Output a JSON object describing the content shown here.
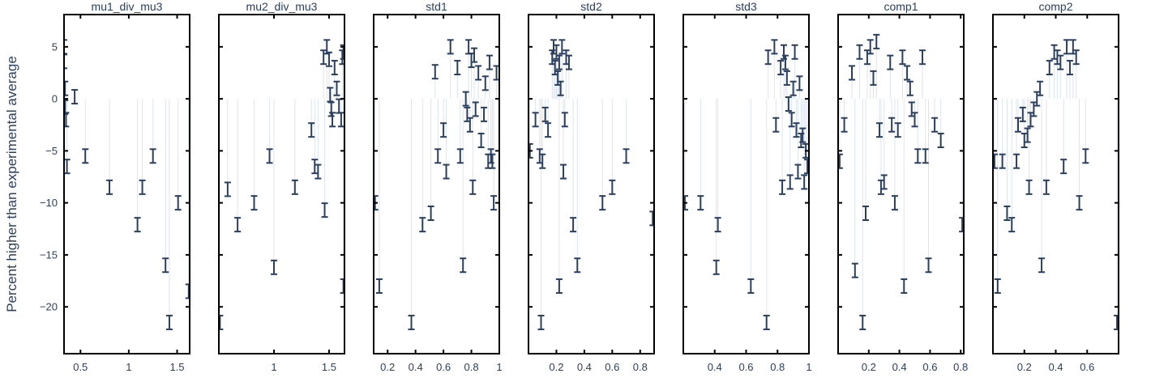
{
  "chart_data": {
    "type": "scatter",
    "ylabel": "Percent higher than experimental average",
    "ylim": [
      -24.5,
      8.1
    ],
    "yticks": [
      5,
      0,
      -5,
      -10,
      -15,
      -20
    ],
    "yticklabels": [
      "5",
      "0",
      "−5",
      "−10",
      "−15",
      "−20"
    ],
    "color": "#2a3f5f",
    "stem_color": "#dce4ee",
    "panels": [
      {
        "title": "mu1_div_mu3",
        "xlim": [
          0.33,
          1.63
        ],
        "xticks": [
          0.5,
          1,
          1.5
        ],
        "xticklabels": [
          "0.5",
          "1",
          "1.5"
        ],
        "points": [
          {
            "x": 0.33,
            "y": 5.0
          },
          {
            "x": 0.33,
            "y": 3.6
          },
          {
            "x": 0.34,
            "y": 1.0
          },
          {
            "x": 0.34,
            "y": -0.8
          },
          {
            "x": 0.35,
            "y": -2.0
          },
          {
            "x": 0.36,
            "y": -6.5
          },
          {
            "x": 0.44,
            "y": 0.2
          },
          {
            "x": 0.55,
            "y": -5.5
          },
          {
            "x": 0.8,
            "y": -8.5
          },
          {
            "x": 1.09,
            "y": -12.1
          },
          {
            "x": 1.14,
            "y": -8.5
          },
          {
            "x": 1.25,
            "y": -5.5
          },
          {
            "x": 1.38,
            "y": -16.0
          },
          {
            "x": 1.42,
            "y": -21.5
          },
          {
            "x": 1.51,
            "y": -10.0
          },
          {
            "x": 1.62,
            "y": -18.5
          }
        ]
      },
      {
        "title": "mu2_div_mu3",
        "xlim": [
          0.5,
          1.64
        ],
        "xticks": [
          1,
          1.5
        ],
        "xticklabels": [
          "1",
          "1.5"
        ],
        "points": [
          {
            "x": 0.51,
            "y": -21.5
          },
          {
            "x": 0.58,
            "y": -8.7
          },
          {
            "x": 0.67,
            "y": -12.1
          },
          {
            "x": 0.82,
            "y": -10.0
          },
          {
            "x": 0.96,
            "y": -5.5
          },
          {
            "x": 1.0,
            "y": -16.2
          },
          {
            "x": 1.19,
            "y": -8.5
          },
          {
            "x": 1.34,
            "y": -3.0
          },
          {
            "x": 1.37,
            "y": -6.5
          },
          {
            "x": 1.4,
            "y": -7.0
          },
          {
            "x": 1.45,
            "y": 4.0
          },
          {
            "x": 1.46,
            "y": -10.7
          },
          {
            "x": 1.48,
            "y": 5.0
          },
          {
            "x": 1.5,
            "y": 3.8
          },
          {
            "x": 1.51,
            "y": 0.4
          },
          {
            "x": 1.52,
            "y": -1.0
          },
          {
            "x": 1.53,
            "y": -2.0
          },
          {
            "x": 1.55,
            "y": 3.0
          },
          {
            "x": 1.57,
            "y": 1.0
          },
          {
            "x": 1.59,
            "y": -0.7
          },
          {
            "x": 1.61,
            "y": -2.0
          },
          {
            "x": 1.62,
            "y": 4.0
          },
          {
            "x": 1.63,
            "y": 4.5
          },
          {
            "x": 1.63,
            "y": -18.0
          }
        ]
      },
      {
        "title": "std1",
        "xlim": [
          0.1,
          1.0
        ],
        "xticks": [
          0.2,
          0.4,
          0.6,
          0.8,
          1
        ],
        "xticklabels": [
          "0.2",
          "0.4",
          "0.6",
          "0.8",
          "1"
        ],
        "points": [
          {
            "x": 0.11,
            "y": -10.0
          },
          {
            "x": 0.14,
            "y": -18.0
          },
          {
            "x": 0.37,
            "y": -21.5
          },
          {
            "x": 0.45,
            "y": -12.1
          },
          {
            "x": 0.51,
            "y": -11.0
          },
          {
            "x": 0.54,
            "y": 2.6
          },
          {
            "x": 0.56,
            "y": -5.5
          },
          {
            "x": 0.6,
            "y": -3.0
          },
          {
            "x": 0.62,
            "y": -7.0
          },
          {
            "x": 0.65,
            "y": 5.0
          },
          {
            "x": 0.7,
            "y": 3.0
          },
          {
            "x": 0.72,
            "y": -5.5
          },
          {
            "x": 0.74,
            "y": -16.0
          },
          {
            "x": 0.76,
            "y": 0.0
          },
          {
            "x": 0.77,
            "y": -1.5
          },
          {
            "x": 0.78,
            "y": 5.0
          },
          {
            "x": 0.79,
            "y": -2.5
          },
          {
            "x": 0.8,
            "y": 3.7
          },
          {
            "x": 0.81,
            "y": -8.5
          },
          {
            "x": 0.82,
            "y": 4.2
          },
          {
            "x": 0.83,
            "y": -1.0
          },
          {
            "x": 0.85,
            "y": 2.5
          },
          {
            "x": 0.87,
            "y": -4.0
          },
          {
            "x": 0.89,
            "y": -1.5
          },
          {
            "x": 0.9,
            "y": 1.5
          },
          {
            "x": 0.92,
            "y": -6.0
          },
          {
            "x": 0.93,
            "y": 3.5
          },
          {
            "x": 0.94,
            "y": -5.5
          },
          {
            "x": 0.95,
            "y": -6.0
          },
          {
            "x": 0.96,
            "y": -10.0
          },
          {
            "x": 0.98,
            "y": 2.5
          }
        ]
      },
      {
        "title": "std2",
        "xlim": [
          0.0,
          0.9
        ],
        "xticks": [
          0.2,
          0.4,
          0.6,
          0.8
        ],
        "xticklabels": [
          "0.2",
          "0.4",
          "0.6",
          "0.8"
        ],
        "points": [
          {
            "x": 0.01,
            "y": -5.0
          },
          {
            "x": 0.05,
            "y": -2.0
          },
          {
            "x": 0.08,
            "y": -5.5
          },
          {
            "x": 0.09,
            "y": -21.5
          },
          {
            "x": 0.1,
            "y": -6.0
          },
          {
            "x": 0.12,
            "y": -1.5
          },
          {
            "x": 0.14,
            "y": -3.0
          },
          {
            "x": 0.17,
            "y": 4.0
          },
          {
            "x": 0.18,
            "y": 5.0
          },
          {
            "x": 0.19,
            "y": 3.0
          },
          {
            "x": 0.2,
            "y": 4.5
          },
          {
            "x": 0.21,
            "y": 2.0
          },
          {
            "x": 0.22,
            "y": -18.0
          },
          {
            "x": 0.22,
            "y": 3.5
          },
          {
            "x": 0.23,
            "y": 1.0
          },
          {
            "x": 0.24,
            "y": 5.0
          },
          {
            "x": 0.25,
            "y": -7.0
          },
          {
            "x": 0.26,
            "y": -2.0
          },
          {
            "x": 0.27,
            "y": 4.0
          },
          {
            "x": 0.29,
            "y": 3.5
          },
          {
            "x": 0.32,
            "y": -12.1
          },
          {
            "x": 0.35,
            "y": -16.0
          },
          {
            "x": 0.53,
            "y": -10.0
          },
          {
            "x": 0.6,
            "y": -8.5
          },
          {
            "x": 0.7,
            "y": -5.5
          },
          {
            "x": 0.89,
            "y": -11.5
          }
        ]
      },
      {
        "title": "std3",
        "xlim": [
          0.2,
          1.0
        ],
        "xticks": [
          0.4,
          0.6,
          0.8,
          1
        ],
        "xticklabels": [
          "0.4",
          "0.6",
          "0.8",
          "1"
        ],
        "points": [
          {
            "x": 0.21,
            "y": -10.0
          },
          {
            "x": 0.31,
            "y": -10.0
          },
          {
            "x": 0.41,
            "y": -16.2
          },
          {
            "x": 0.42,
            "y": -12.1
          },
          {
            "x": 0.63,
            "y": -18.0
          },
          {
            "x": 0.73,
            "y": -21.5
          },
          {
            "x": 0.74,
            "y": 4.0
          },
          {
            "x": 0.78,
            "y": 5.0
          },
          {
            "x": 0.79,
            "y": -2.5
          },
          {
            "x": 0.82,
            "y": 3.0
          },
          {
            "x": 0.83,
            "y": -8.5
          },
          {
            "x": 0.84,
            "y": 4.5
          },
          {
            "x": 0.85,
            "y": 3.5
          },
          {
            "x": 0.86,
            "y": 2.0
          },
          {
            "x": 0.87,
            "y": -0.5
          },
          {
            "x": 0.88,
            "y": -8.0
          },
          {
            "x": 0.89,
            "y": -2.0
          },
          {
            "x": 0.9,
            "y": 1.0
          },
          {
            "x": 0.91,
            "y": 4.5
          },
          {
            "x": 0.92,
            "y": -3.0
          },
          {
            "x": 0.93,
            "y": -7.0
          },
          {
            "x": 0.94,
            "y": 1.5
          },
          {
            "x": 0.95,
            "y": -4.0
          },
          {
            "x": 0.96,
            "y": -3.5
          },
          {
            "x": 0.97,
            "y": -8.0
          },
          {
            "x": 0.98,
            "y": -5.0
          },
          {
            "x": 0.99,
            "y": -6.5
          }
        ]
      },
      {
        "title": "comp1",
        "xlim": [
          0.0,
          0.82
        ],
        "xticks": [
          0.2,
          0.4,
          0.6,
          0.8
        ],
        "xticklabels": [
          "0.2",
          "0.4",
          "0.6",
          "0.8"
        ],
        "points": [
          {
            "x": 0.01,
            "y": -6.0
          },
          {
            "x": 0.04,
            "y": -2.5
          },
          {
            "x": 0.09,
            "y": 2.5
          },
          {
            "x": 0.11,
            "y": -16.5
          },
          {
            "x": 0.14,
            "y": 4.5
          },
          {
            "x": 0.16,
            "y": -21.5
          },
          {
            "x": 0.18,
            "y": -11.0
          },
          {
            "x": 0.19,
            "y": 4.0
          },
          {
            "x": 0.21,
            "y": 5.0
          },
          {
            "x": 0.23,
            "y": 2.0
          },
          {
            "x": 0.25,
            "y": 5.5
          },
          {
            "x": 0.27,
            "y": -3.0
          },
          {
            "x": 0.28,
            "y": -8.5
          },
          {
            "x": 0.3,
            "y": -8.0
          },
          {
            "x": 0.34,
            "y": 3.5
          },
          {
            "x": 0.35,
            "y": -2.5
          },
          {
            "x": 0.37,
            "y": -10.0
          },
          {
            "x": 0.39,
            "y": -3.0
          },
          {
            "x": 0.42,
            "y": 4.0
          },
          {
            "x": 0.43,
            "y": -18.0
          },
          {
            "x": 0.45,
            "y": 2.5
          },
          {
            "x": 0.47,
            "y": 1.0
          },
          {
            "x": 0.48,
            "y": -1.0
          },
          {
            "x": 0.5,
            "y": -2.0
          },
          {
            "x": 0.52,
            "y": -5.5
          },
          {
            "x": 0.55,
            "y": 4.0
          },
          {
            "x": 0.57,
            "y": -5.5
          },
          {
            "x": 0.59,
            "y": -16.0
          },
          {
            "x": 0.63,
            "y": -2.5
          },
          {
            "x": 0.67,
            "y": -4.0
          },
          {
            "x": 0.81,
            "y": -12.1
          }
        ]
      },
      {
        "title": "comp2",
        "xlim": [
          0.0,
          0.8
        ],
        "xticks": [
          0.2,
          0.4,
          0.6
        ],
        "xticklabels": [
          "0.2",
          "0.4",
          "0.6"
        ],
        "points": [
          {
            "x": 0.01,
            "y": -6.0
          },
          {
            "x": 0.03,
            "y": -18.0
          },
          {
            "x": 0.06,
            "y": -6.0
          },
          {
            "x": 0.09,
            "y": -11.0
          },
          {
            "x": 0.12,
            "y": -12.1
          },
          {
            "x": 0.15,
            "y": -6.0
          },
          {
            "x": 0.16,
            "y": -2.5
          },
          {
            "x": 0.19,
            "y": -1.5
          },
          {
            "x": 0.2,
            "y": -4.0
          },
          {
            "x": 0.22,
            "y": -3.5
          },
          {
            "x": 0.23,
            "y": -8.5
          },
          {
            "x": 0.24,
            "y": -2.0
          },
          {
            "x": 0.26,
            "y": -1.0
          },
          {
            "x": 0.28,
            "y": 0.0
          },
          {
            "x": 0.3,
            "y": 1.0
          },
          {
            "x": 0.31,
            "y": -16.0
          },
          {
            "x": 0.34,
            "y": -8.5
          },
          {
            "x": 0.36,
            "y": 3.0
          },
          {
            "x": 0.39,
            "y": 4.5
          },
          {
            "x": 0.41,
            "y": 4.0
          },
          {
            "x": 0.43,
            "y": 3.5
          },
          {
            "x": 0.45,
            "y": -6.5
          },
          {
            "x": 0.47,
            "y": 5.0
          },
          {
            "x": 0.49,
            "y": 3.0
          },
          {
            "x": 0.51,
            "y": 5.0
          },
          {
            "x": 0.53,
            "y": 4.0
          },
          {
            "x": 0.55,
            "y": -10.0
          },
          {
            "x": 0.59,
            "y": -5.5
          },
          {
            "x": 0.79,
            "y": -21.5
          }
        ]
      }
    ]
  }
}
